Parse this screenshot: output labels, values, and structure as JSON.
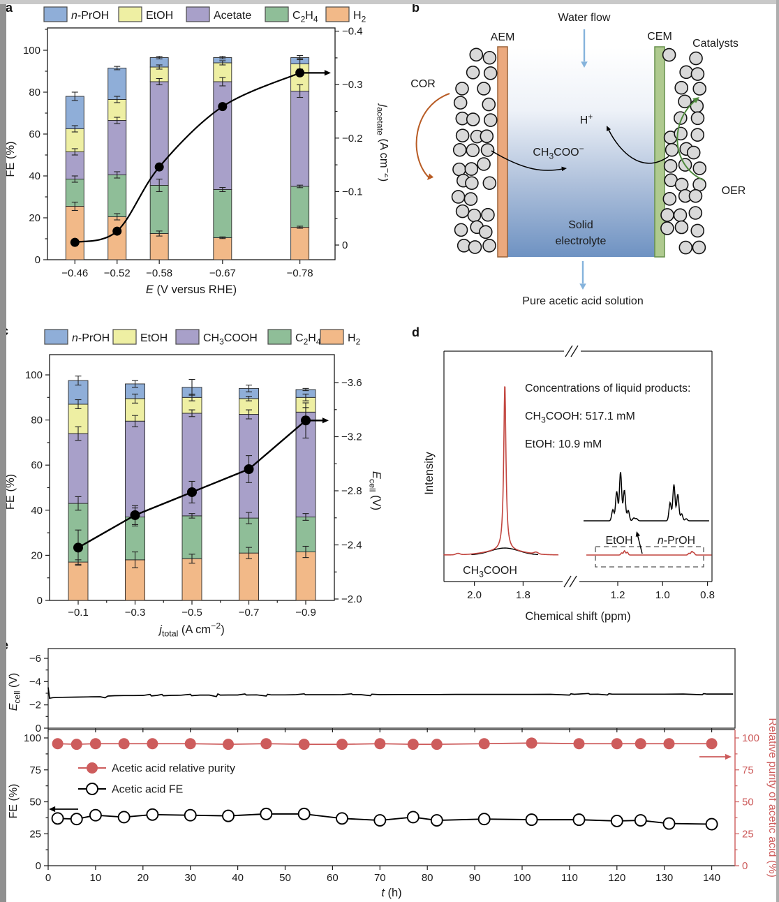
{
  "panel_labels": {
    "a": "a",
    "b": "b",
    "c": "c",
    "d": "d",
    "e": "e"
  },
  "colors": {
    "blue": "#8FAED8",
    "yellow": "#EEEFA3",
    "purple": "#A8A0C9",
    "green": "#8FBE98",
    "orange": "#F2B988",
    "bar_stroke": "#2a2a2a",
    "axis": "#1a1a1a",
    "red": "#CD5C5C",
    "nmr_red": "#C2453F",
    "aem_fill": "#EBA97E",
    "aem_stroke": "#9a6238",
    "cem_fill": "#AFCA8F",
    "cem_stroke": "#66904C",
    "particle_fill": "#D9D9D9",
    "particle_stroke": "#141414",
    "cor": "#B85C25",
    "oer": "#4F8A3D",
    "water": "#85B3DC",
    "electrolyte_deep": "#6E92C2"
  },
  "chart_data": [
    {
      "id": "a",
      "type": "bar",
      "stacked": true,
      "categories": [
        "−0.46",
        "−0.52",
        "−0.58",
        "−0.67",
        "−0.78"
      ],
      "x_values": [
        -0.46,
        -0.52,
        -0.58,
        -0.67,
        -0.78
      ],
      "xlabel": "{i:E} (V versus RHE)",
      "ylabel": "FE (%)",
      "ylim": [
        0,
        110
      ],
      "yticks": [
        0,
        20,
        40,
        60,
        80,
        100
      ],
      "series": [
        {
          "name": "H{s:2}",
          "color": "orange",
          "values": [
            25.5,
            20.5,
            12.5,
            10.5,
            15.5
          ],
          "err": [
            2,
            1.5,
            1.2,
            0.4,
            0.5
          ]
        },
        {
          "name": "C{s:2}H{s:4}",
          "color": "green",
          "values": [
            13,
            20,
            23,
            23,
            19.5
          ],
          "err": [
            1.5,
            1.5,
            3,
            1,
            0.6
          ]
        },
        {
          "name": "Acetate",
          "color": "purple",
          "values": [
            13,
            26,
            49.5,
            51.5,
            45.5
          ],
          "err": [
            1.5,
            1.5,
            1.5,
            2,
            3
          ]
        },
        {
          "name": "EtOH",
          "color": "yellow",
          "values": [
            11,
            10,
            7,
            9,
            13
          ],
          "err": [
            1.5,
            1.5,
            1,
            1,
            2.5
          ]
        },
        {
          "name": "{i:n}-PrOH",
          "color": "blue",
          "values": [
            15.5,
            15,
            4.5,
            2.5,
            3
          ],
          "err": [
            2,
            0.8,
            0.6,
            0.6,
            1
          ]
        }
      ],
      "legend": [
        {
          "label": "{i:n}-PrOH",
          "color": "blue"
        },
        {
          "label": "EtOH",
          "color": "yellow"
        },
        {
          "label": "Acetate",
          "color": "purple"
        },
        {
          "label": "C{s:2}H{s:4}",
          "color": "green"
        },
        {
          "label": "H{s:2}",
          "color": "orange"
        }
      ],
      "right_axis": {
        "label": "{i:j}{s:acetate} (A cm{u:−2})",
        "ticks": [
          0,
          -0.1,
          -0.2,
          -0.3,
          -0.4
        ],
        "tick_labels": [
          "0",
          "−0.1",
          "−0.2",
          "−0.3",
          "−0.4"
        ]
      },
      "line_series": {
        "name": "{i:j}{s:acetate}",
        "values": [
          -0.005,
          -0.026,
          -0.146,
          -0.259,
          -0.322
        ]
      }
    },
    {
      "id": "b",
      "type": "diagram",
      "labels": {
        "water_flow": "Water flow",
        "aem": "AEM",
        "cem": "CEM",
        "catalysts": "Catalysts",
        "cor": "COR",
        "oer": "OER",
        "proton": "H{u:+}",
        "acetate_ion": "CH{s:3}COO{u:−}",
        "electrolyte_line1": "Solid",
        "electrolyte_line2": "electrolyte",
        "product": "Pure acetic acid solution"
      }
    },
    {
      "id": "c",
      "type": "bar",
      "stacked": true,
      "categories": [
        "−0.1",
        "−0.3",
        "−0.5",
        "−0.7",
        "−0.9"
      ],
      "x_values": [
        -0.1,
        -0.3,
        -0.5,
        -0.7,
        -0.9
      ],
      "xlabel": "{i:j}{s:total} (A cm{u:−2})",
      "ylabel": "FE (%)",
      "ylim": [
        0,
        109
      ],
      "yticks": [
        0,
        20,
        40,
        60,
        80,
        100
      ],
      "series": [
        {
          "name": "H{s:2}",
          "color": "orange",
          "values": [
            17,
            18,
            18.5,
            21,
            21.5
          ],
          "err": [
            1,
            3.5,
            2,
            2.5,
            2.5
          ]
        },
        {
          "name": "C{s:2}H{s:4}",
          "color": "green",
          "values": [
            26,
            19,
            19,
            15.5,
            15.5
          ],
          "err": [
            3,
            4,
            1,
            2.5,
            1.5
          ]
        },
        {
          "name": "CH{s:3}COOH",
          "color": "purple",
          "values": [
            31,
            42.5,
            45.5,
            46,
            46.5
          ],
          "err": [
            3,
            2.5,
            1.5,
            2,
            2
          ]
        },
        {
          "name": "EtOH",
          "color": "yellow",
          "values": [
            13,
            10,
            7,
            7,
            6.5
          ],
          "err": [
            2,
            2,
            1.5,
            1,
            1.5
          ]
        },
        {
          "name": "{i:n}-PrOH",
          "color": "blue",
          "values": [
            10.5,
            6.5,
            4.5,
            4.5,
            3.5
          ],
          "err": [
            2,
            1.5,
            3.5,
            1.5,
            0.5
          ]
        }
      ],
      "legend": [
        {
          "label": "{i:n}-PrOH",
          "color": "blue"
        },
        {
          "label": "EtOH",
          "color": "yellow"
        },
        {
          "label": "CH{s:3}COOH",
          "color": "purple"
        },
        {
          "label": "C{s:2}H{s:4}",
          "color": "green"
        },
        {
          "label": "H{s:2}",
          "color": "orange"
        }
      ],
      "right_axis": {
        "label": "{i:E}{s:cell} (V)",
        "ticks": [
          -2.0,
          -2.4,
          -2.8,
          -3.2,
          -3.6
        ],
        "tick_labels": [
          "−2.0",
          "−2.4",
          "−2.8",
          "−3.2",
          "−3.6"
        ]
      },
      "line_series": {
        "name": "{i:E}{s:cell}",
        "values": [
          -2.38,
          -2.62,
          -2.79,
          -2.96,
          -3.32
        ],
        "err": [
          0.13,
          0.07,
          0.08,
          0.1,
          0.13
        ]
      }
    },
    {
      "id": "d",
      "type": "line",
      "ylabel": "Intensity",
      "xlabel": "Chemical shift (ppm)",
      "xticks_left": [
        2.0,
        1.8
      ],
      "xtick_labels_left": [
        "2.0",
        "1.8"
      ],
      "xticks_right": [
        1.2,
        1.0,
        0.8
      ],
      "xtick_labels_right": [
        "1.2",
        "1.0",
        "0.8"
      ],
      "annotations": {
        "header": "Concentrations of liquid products:",
        "conc1": "CH{s:3}COOH: 517.1 mM",
        "conc2": "EtOH: 10.9 mM",
        "main_peak": "CH{s:3}COOH",
        "inset_left": "EtOH",
        "inset_right": "{i:n}-PrOH"
      },
      "main_peak_ppm": 1.875,
      "minor_peaks_ppm": [
        1.17,
        0.87
      ]
    },
    {
      "id": "e",
      "type": "line",
      "top": {
        "ylabel": "{i:E}{s:cell} (V)",
        "yticks": [
          0,
          -2,
          -4,
          -6
        ],
        "trace": [
          [
            0,
            -3.5
          ],
          [
            0.3,
            -2.57
          ],
          [
            1,
            -2.62
          ],
          [
            3,
            -2.65
          ],
          [
            6,
            -2.67
          ],
          [
            9,
            -2.69
          ],
          [
            11,
            -2.7
          ],
          [
            12,
            -2.61
          ],
          [
            12.6,
            -2.76
          ],
          [
            14,
            -2.79
          ],
          [
            16,
            -2.8
          ],
          [
            18,
            -2.8
          ],
          [
            20,
            -2.81
          ],
          [
            21.5,
            -2.9
          ],
          [
            21.8,
            -2.77
          ],
          [
            23,
            -2.82
          ],
          [
            24,
            -2.9
          ],
          [
            24.3,
            -2.78
          ],
          [
            26,
            -2.82
          ],
          [
            28,
            -2.83
          ],
          [
            30,
            -2.91
          ],
          [
            30.3,
            -2.79
          ],
          [
            32,
            -2.84
          ],
          [
            34,
            -2.84
          ],
          [
            35.5,
            -2.71
          ],
          [
            35.8,
            -2.94
          ],
          [
            36.3,
            -2.84
          ],
          [
            38,
            -2.85
          ],
          [
            40,
            -2.85
          ],
          [
            41.5,
            -2.94
          ],
          [
            41.8,
            -2.85
          ],
          [
            44,
            -2.86
          ],
          [
            46,
            -2.76
          ],
          [
            46.3,
            -2.91
          ],
          [
            47,
            -2.86
          ],
          [
            50,
            -2.86
          ],
          [
            52,
            -2.87
          ],
          [
            54,
            -2.95
          ],
          [
            54.3,
            -2.87
          ],
          [
            56,
            -2.87
          ],
          [
            58,
            -2.87
          ],
          [
            60,
            -2.87
          ],
          [
            62,
            -2.88
          ],
          [
            64,
            -2.95
          ],
          [
            64.3,
            -2.88
          ],
          [
            66,
            -2.88
          ],
          [
            68,
            -2.79
          ],
          [
            68.3,
            -2.92
          ],
          [
            70,
            -2.88
          ],
          [
            74,
            -2.89
          ],
          [
            78,
            -2.89
          ],
          [
            82,
            -2.89
          ],
          [
            86,
            -2.9
          ],
          [
            90,
            -2.9
          ],
          [
            94,
            -2.9
          ],
          [
            98,
            -2.9
          ],
          [
            102,
            -2.9
          ],
          [
            106,
            -2.91
          ],
          [
            110,
            -2.84
          ],
          [
            110.3,
            -2.95
          ],
          [
            111,
            -2.91
          ],
          [
            114,
            -2.98
          ],
          [
            114.3,
            -2.91
          ],
          [
            116,
            -2.92
          ],
          [
            118,
            -2.85
          ],
          [
            118.3,
            -2.96
          ],
          [
            119,
            -2.92
          ],
          [
            122,
            -2.92
          ],
          [
            126,
            -2.92
          ],
          [
            130,
            -2.92
          ],
          [
            134,
            -2.93
          ],
          [
            138,
            -2.87
          ],
          [
            138.3,
            -2.97
          ],
          [
            139,
            -2.93
          ],
          [
            142,
            -2.93
          ],
          [
            144.5,
            -2.93
          ]
        ]
      },
      "bottom": {
        "ylabel": "FE (%)",
        "yticks": [
          0,
          25,
          50,
          75,
          100
        ],
        "right_label": "Relative purity of acetic acid (%)",
        "right_ticks": [
          0,
          25,
          50,
          75,
          100
        ],
        "xlabel": "{i:t} (h)",
        "xticks": [
          0,
          10,
          20,
          30,
          40,
          50,
          60,
          70,
          80,
          90,
          100,
          110,
          120,
          130,
          140
        ],
        "t": [
          2,
          6,
          10,
          16,
          22,
          30,
          38,
          46,
          54,
          62,
          70,
          77,
          82,
          92,
          102,
          112,
          120,
          125,
          131,
          140
        ],
        "fe": [
          37,
          36.5,
          39.5,
          38,
          40,
          39.5,
          39,
          40.5,
          40.5,
          37,
          35.5,
          38,
          35.5,
          36.5,
          36,
          36,
          35,
          35.5,
          33,
          32.5
        ],
        "purity": [
          95.5,
          95,
          95.5,
          95.5,
          95.5,
          95.5,
          95,
          95.5,
          95,
          95,
          95.5,
          95,
          95,
          95.5,
          96,
          95.5,
          95.5,
          95.5,
          95.5,
          95.5
        ],
        "legend": [
          {
            "label": "Acetic acid relative purity",
            "marker": "filled-red"
          },
          {
            "label": "Acetic acid FE",
            "marker": "open-black"
          }
        ]
      }
    }
  ]
}
